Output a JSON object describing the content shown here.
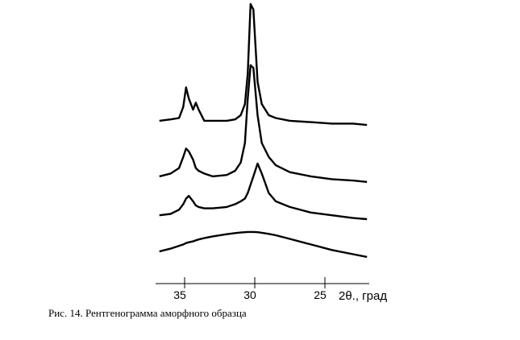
{
  "chart_data": {
    "type": "line",
    "title": "Рис. 14. Рентгенограмма аморфного образца",
    "x_label": "2θ., град",
    "x": [
      36.8,
      36,
      35.4,
      35.1,
      34.9,
      34.7,
      34.4,
      34.2,
      34.0,
      33.6,
      33,
      32,
      31.4,
      31,
      30.7,
      30.5,
      30.3,
      30.1,
      29.8,
      29.5,
      29,
      28.5,
      27.5,
      26,
      24.5,
      23,
      22
    ],
    "series": [
      {
        "color": "#000000",
        "values": [
          58,
          58.5,
          59,
          63,
          70,
          66,
          62,
          64.5,
          62,
          58,
          58,
          58,
          58.5,
          60,
          64,
          75,
          100,
          98,
          72,
          64,
          60,
          59,
          58,
          57.5,
          57,
          57,
          56.5
        ]
      },
      {
        "color": "#000000",
        "values": [
          38,
          39,
          41,
          45,
          48,
          47,
          44,
          41,
          40,
          39,
          38,
          38.5,
          40,
          43,
          50,
          66,
          78,
          77,
          60,
          50,
          45,
          42,
          39.5,
          38,
          37,
          36.5,
          36
        ]
      },
      {
        "color": "#000000",
        "values": [
          24,
          24.5,
          26,
          28,
          30,
          31,
          29,
          27.5,
          27,
          26.5,
          26.5,
          27,
          28,
          29,
          30,
          32,
          35,
          38,
          42.6,
          39,
          32,
          29,
          27,
          25,
          24,
          23,
          22.6
        ]
      },
      {
        "color": "#000000",
        "values": [
          11,
          12,
          13,
          13.5,
          14,
          14.3,
          14.6,
          15,
          15.3,
          15.8,
          16.4,
          17.2,
          17.6,
          17.8,
          17.9,
          18,
          18,
          18,
          17.9,
          17.7,
          17.3,
          16.8,
          15.5,
          13.5,
          11.5,
          10,
          9
        ]
      }
    ],
    "xlim": [
      37.07,
      21.84
    ],
    "xticks": [
      35,
      30,
      25
    ],
    "ylim": [
      0,
      100
    ]
  }
}
